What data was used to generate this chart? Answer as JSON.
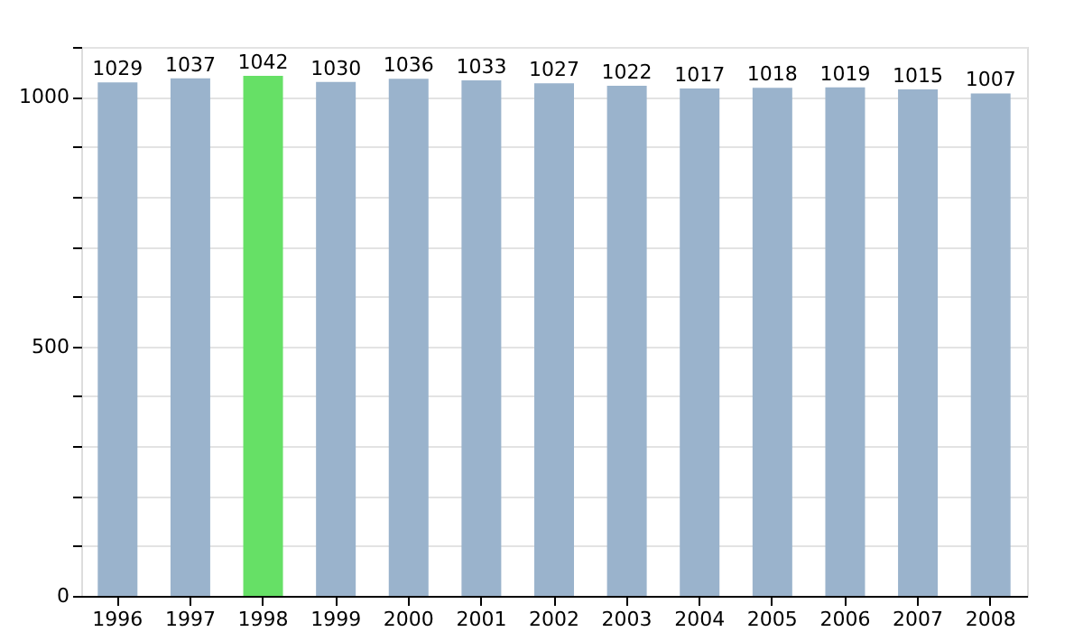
{
  "chart_data": {
    "type": "bar",
    "categories": [
      "1996",
      "1997",
      "1998",
      "1999",
      "2000",
      "2001",
      "2002",
      "2003",
      "2004",
      "2005",
      "2006",
      "2007",
      "2008"
    ],
    "values": [
      1029,
      1037,
      1042,
      1030,
      1036,
      1033,
      1027,
      1022,
      1017,
      1018,
      1019,
      1015,
      1007
    ],
    "colors": [
      "#9ab3cc",
      "#9ab3cc",
      "#66e066",
      "#9ab3cc",
      "#9ab3cc",
      "#9ab3cc",
      "#9ab3cc",
      "#9ab3cc",
      "#9ab3cc",
      "#9ab3cc",
      "#9ab3cc",
      "#9ab3cc",
      "#9ab3cc"
    ],
    "ylim": [
      0,
      1100
    ],
    "yticks": [
      0,
      {
        "value": 100,
        "label": null
      },
      {
        "value": 200,
        "label": null
      },
      {
        "value": 300,
        "label": null
      },
      {
        "value": 400,
        "label": null
      },
      500,
      {
        "value": 600,
        "label": null
      },
      {
        "value": 700,
        "label": null
      },
      {
        "value": 800,
        "label": null
      },
      {
        "value": 900,
        "label": null
      },
      1000,
      {
        "value": 1100,
        "label": null
      }
    ],
    "data_labels": true,
    "grid": "y"
  }
}
